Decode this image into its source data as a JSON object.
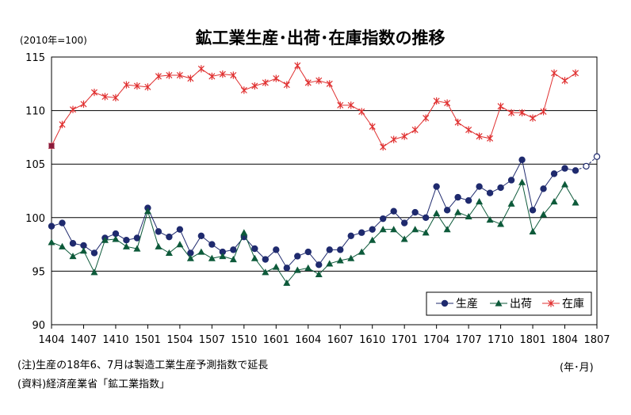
{
  "title": "鉱工業生産･出荷･在庫指数の推移",
  "unit_label": "(2010年=100)",
  "x_unit_label": "(年･月)",
  "notes": {
    "note1": "(注)生産の18年6、7月は製造工業生産予測指数で延長",
    "note2": "(資料)経済産業省「鉱工業指数」"
  },
  "chart_data": {
    "type": "line",
    "title": "鉱工業生産･出荷･在庫指数の推移",
    "ylabel": "(2010年=100)",
    "xlabel": "(年･月)",
    "ylim": [
      90,
      115
    ],
    "yticks": [
      90,
      95,
      100,
      105,
      110,
      115
    ],
    "xticks": [
      "1404",
      "1407",
      "1410",
      "1501",
      "1504",
      "1507",
      "1510",
      "1601",
      "1604",
      "1607",
      "1610",
      "1701",
      "1704",
      "1707",
      "1710",
      "1801",
      "1804",
      "1807"
    ],
    "grid": "horizontal",
    "legend_position": "bottom-right",
    "categories": [
      "1404",
      "1405",
      "1406",
      "1407",
      "1408",
      "1409",
      "1410",
      "1411",
      "1412",
      "1501",
      "1502",
      "1503",
      "1504",
      "1505",
      "1506",
      "1507",
      "1508",
      "1509",
      "1510",
      "1511",
      "1512",
      "1601",
      "1602",
      "1603",
      "1604",
      "1605",
      "1606",
      "1607",
      "1608",
      "1609",
      "1610",
      "1611",
      "1612",
      "1701",
      "1702",
      "1703",
      "1704",
      "1705",
      "1706",
      "1707",
      "1708",
      "1709",
      "1710",
      "1711",
      "1712",
      "1801",
      "1802",
      "1803",
      "1804",
      "1805",
      "1806",
      "1807"
    ],
    "series": [
      {
        "name": "生産",
        "color": "#1f2a6e",
        "marker": "circle",
        "values": [
          99.2,
          99.5,
          97.6,
          97.4,
          96.7,
          98.1,
          98.5,
          97.9,
          98.1,
          100.9,
          98.7,
          98.2,
          98.9,
          96.7,
          98.3,
          97.5,
          96.8,
          97.0,
          98.2,
          97.1,
          96.1,
          97.0,
          95.3,
          96.4,
          96.8,
          95.6,
          97.0,
          97.0,
          98.3,
          98.6,
          98.9,
          99.9,
          100.6,
          99.5,
          100.5,
          100.0,
          102.9,
          100.7,
          101.9,
          101.6,
          102.9,
          102.3,
          102.8,
          103.5,
          105.4,
          100.7,
          102.7,
          104.1,
          104.6,
          104.4,
          104.8,
          105.7
        ],
        "forecast_from": "1806"
      },
      {
        "name": "出荷",
        "color": "#0d5a3a",
        "marker": "triangle",
        "values": [
          97.7,
          97.3,
          96.4,
          96.9,
          94.9,
          97.9,
          98.0,
          97.3,
          97.1,
          100.6,
          97.3,
          96.7,
          97.5,
          96.2,
          96.8,
          96.2,
          96.4,
          96.1,
          98.6,
          96.2,
          94.9,
          95.4,
          93.9,
          95.1,
          95.3,
          94.7,
          95.7,
          96.0,
          96.2,
          96.8,
          97.9,
          98.9,
          98.9,
          98.0,
          98.9,
          98.6,
          100.4,
          98.9,
          100.5,
          100.1,
          101.5,
          99.8,
          99.4,
          101.3,
          103.3,
          98.7,
          100.3,
          101.5,
          103.1,
          101.4,
          null,
          null
        ]
      },
      {
        "name": "在庫",
        "color": "#e03030",
        "marker": "x-star",
        "values": [
          106.7,
          108.7,
          110.1,
          110.6,
          111.7,
          111.3,
          111.2,
          112.4,
          112.3,
          112.2,
          113.2,
          113.3,
          113.3,
          113.0,
          113.9,
          113.2,
          113.4,
          113.3,
          111.9,
          112.3,
          112.6,
          113.0,
          112.4,
          114.2,
          112.6,
          112.8,
          112.5,
          110.5,
          110.5,
          109.9,
          108.5,
          106.6,
          107.3,
          107.6,
          108.2,
          109.3,
          110.9,
          110.7,
          108.9,
          108.2,
          107.6,
          107.4,
          110.4,
          109.8,
          109.8,
          109.3,
          109.9,
          113.5,
          112.8,
          113.5,
          null,
          null
        ]
      }
    ]
  }
}
